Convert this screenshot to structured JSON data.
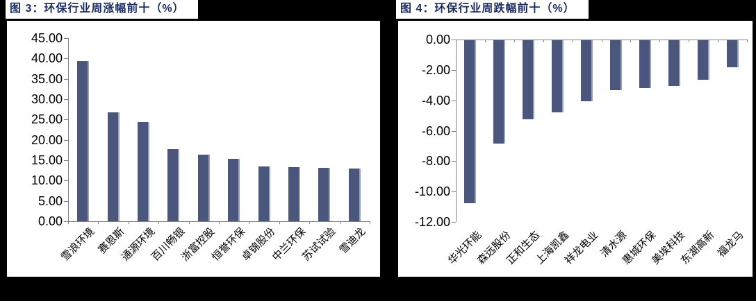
{
  "page": {
    "background": "#000000",
    "card_background": "#FFFFFF",
    "title_color": "#1B2B5F",
    "axis_color": "#808080",
    "label_color": "#000000"
  },
  "chart_data": [
    {
      "type": "bar",
      "title": "图 3：环保行业周涨幅前十（%）",
      "categories": [
        "雪浪环境",
        "赛恩斯",
        "通源环境",
        "百川畅银",
        "浙富控股",
        "恒誉环保",
        "卓锦股份",
        "中兰环保",
        "苏试试验",
        "雪迪龙"
      ],
      "values": [
        39.4,
        26.8,
        24.4,
        17.7,
        16.3,
        15.3,
        13.5,
        13.3,
        13.2,
        12.9
      ],
      "xlabel": "",
      "ylabel": "",
      "ylim": [
        0,
        45
      ],
      "ytick_step": 5,
      "ytick_format_decimals": 2,
      "grid": false,
      "legend": "none",
      "bar_color": "#4A567C",
      "bar_edge_color": "#9AA2B9"
    },
    {
      "type": "bar",
      "title": "图 4：环保行业周跌幅前十（%）",
      "categories": [
        "华光环能",
        "森远股份",
        "正和生态",
        "上海凯鑫",
        "祥龙电业",
        "清水源",
        "惠城环保",
        "美埃科技",
        "东湖高新",
        "福龙马"
      ],
      "values": [
        -10.7,
        -6.8,
        -5.2,
        -4.75,
        -4.0,
        -3.3,
        -3.15,
        -3.0,
        -2.6,
        -1.8
      ],
      "xlabel": "",
      "ylabel": "",
      "ylim": [
        -12,
        0
      ],
      "ytick_step": 2,
      "ytick_format_decimals": 2,
      "grid": false,
      "legend": "none",
      "bar_color": "#4A567C",
      "bar_edge_color": "#9AA2B9"
    }
  ]
}
